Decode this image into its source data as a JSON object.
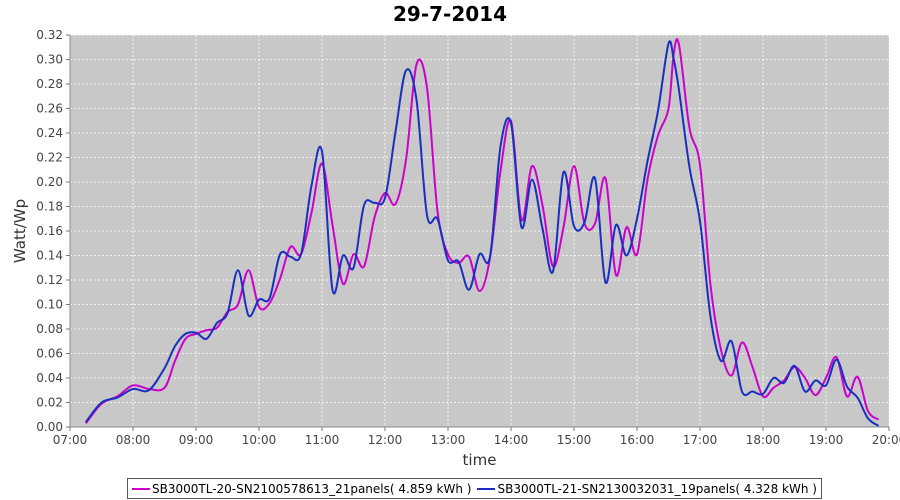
{
  "chart_data": {
    "type": "line",
    "title": "29-7-2014",
    "xlabel": "time",
    "ylabel": "Watt/Wp",
    "xlim": [
      "07:00",
      "20:00"
    ],
    "ylim": [
      0,
      0.32
    ],
    "x_ticks": [
      "07:00",
      "08:00",
      "09:00",
      "10:00",
      "11:00",
      "12:00",
      "13:00",
      "14:00",
      "15:00",
      "16:00",
      "17:00",
      "18:00",
      "19:00",
      "20:00"
    ],
    "y_ticks": [
      "0.00",
      "0.02",
      "0.04",
      "0.06",
      "0.08",
      "0.10",
      "0.12",
      "0.14",
      "0.16",
      "0.18",
      "0.20",
      "0.22",
      "0.24",
      "0.26",
      "0.28",
      "0.30",
      "0.32"
    ],
    "grid": true,
    "legend_position": "bottom",
    "plot_background": "#c8c8c8",
    "series": [
      {
        "name": "SB3000TL-20-SN2100578613_21panels( 4.859 kWh )",
        "color": "#cc00cc",
        "x": [
          "07:15",
          "07:30",
          "07:45",
          "08:00",
          "08:15",
          "08:30",
          "08:40",
          "08:50",
          "09:00",
          "09:10",
          "09:20",
          "09:30",
          "09:40",
          "09:50",
          "10:00",
          "10:10",
          "10:20",
          "10:30",
          "10:40",
          "10:50",
          "11:00",
          "11:10",
          "11:20",
          "11:30",
          "11:40",
          "11:50",
          "12:00",
          "12:10",
          "12:20",
          "12:30",
          "12:40",
          "12:50",
          "13:00",
          "13:10",
          "13:20",
          "13:30",
          "13:40",
          "13:50",
          "14:00",
          "14:10",
          "14:20",
          "14:30",
          "14:40",
          "14:50",
          "15:00",
          "15:10",
          "15:20",
          "15:30",
          "15:40",
          "15:50",
          "16:00",
          "16:10",
          "16:20",
          "16:30",
          "16:35",
          "16:40",
          "16:50",
          "17:00",
          "17:10",
          "17:20",
          "17:30",
          "17:40",
          "17:50",
          "18:00",
          "18:10",
          "18:20",
          "18:30",
          "18:40",
          "18:50",
          "19:00",
          "19:10",
          "19:20",
          "19:30",
          "19:40",
          "19:50"
        ],
        "y": [
          0.003,
          0.019,
          0.025,
          0.034,
          0.031,
          0.032,
          0.054,
          0.072,
          0.076,
          0.079,
          0.081,
          0.094,
          0.1,
          0.128,
          0.098,
          0.101,
          0.121,
          0.147,
          0.141,
          0.175,
          0.215,
          0.165,
          0.117,
          0.141,
          0.131,
          0.171,
          0.191,
          0.182,
          0.218,
          0.296,
          0.277,
          0.176,
          0.141,
          0.134,
          0.139,
          0.111,
          0.138,
          0.209,
          0.25,
          0.169,
          0.213,
          0.181,
          0.131,
          0.163,
          0.213,
          0.166,
          0.166,
          0.203,
          0.124,
          0.163,
          0.141,
          0.202,
          0.238,
          0.26,
          0.305,
          0.312,
          0.244,
          0.214,
          0.116,
          0.063,
          0.042,
          0.069,
          0.049,
          0.025,
          0.032,
          0.038,
          0.049,
          0.04,
          0.026,
          0.04,
          0.057,
          0.025,
          0.041,
          0.013,
          0.006
        ]
      },
      {
        "name": "SB3000TL-21-SN2130032031_19panels( 4.328 kWh )",
        "color": "#1a2fbf",
        "x": [
          "07:15",
          "07:30",
          "07:45",
          "08:00",
          "08:15",
          "08:30",
          "08:40",
          "08:50",
          "09:00",
          "09:10",
          "09:20",
          "09:30",
          "09:40",
          "09:50",
          "10:00",
          "10:10",
          "10:20",
          "10:30",
          "10:40",
          "10:50",
          "11:00",
          "11:10",
          "11:20",
          "11:30",
          "11:40",
          "11:50",
          "12:00",
          "12:10",
          "12:20",
          "12:30",
          "12:40",
          "12:50",
          "13:00",
          "13:10",
          "13:20",
          "13:30",
          "13:40",
          "13:50",
          "14:00",
          "14:10",
          "14:20",
          "14:30",
          "14:40",
          "14:50",
          "15:00",
          "15:10",
          "15:20",
          "15:30",
          "15:40",
          "15:50",
          "16:00",
          "16:10",
          "16:20",
          "16:30",
          "16:35",
          "16:40",
          "16:50",
          "17:00",
          "17:10",
          "17:20",
          "17:30",
          "17:40",
          "17:50",
          "18:00",
          "18:10",
          "18:20",
          "18:30",
          "18:40",
          "18:50",
          "19:00",
          "19:10",
          "19:20",
          "19:30",
          "19:40",
          "19:50"
        ],
        "y": [
          0.004,
          0.02,
          0.024,
          0.031,
          0.03,
          0.048,
          0.066,
          0.076,
          0.077,
          0.072,
          0.085,
          0.093,
          0.128,
          0.091,
          0.104,
          0.105,
          0.141,
          0.139,
          0.141,
          0.197,
          0.225,
          0.112,
          0.14,
          0.13,
          0.181,
          0.183,
          0.187,
          0.241,
          0.291,
          0.267,
          0.173,
          0.17,
          0.136,
          0.135,
          0.112,
          0.141,
          0.139,
          0.229,
          0.248,
          0.163,
          0.202,
          0.162,
          0.127,
          0.208,
          0.164,
          0.167,
          0.203,
          0.118,
          0.165,
          0.14,
          0.17,
          0.217,
          0.258,
          0.313,
          0.3,
          0.275,
          0.212,
          0.168,
          0.09,
          0.054,
          0.07,
          0.029,
          0.029,
          0.027,
          0.04,
          0.036,
          0.05,
          0.029,
          0.038,
          0.034,
          0.055,
          0.033,
          0.024,
          0.007,
          0.001
        ]
      }
    ]
  }
}
